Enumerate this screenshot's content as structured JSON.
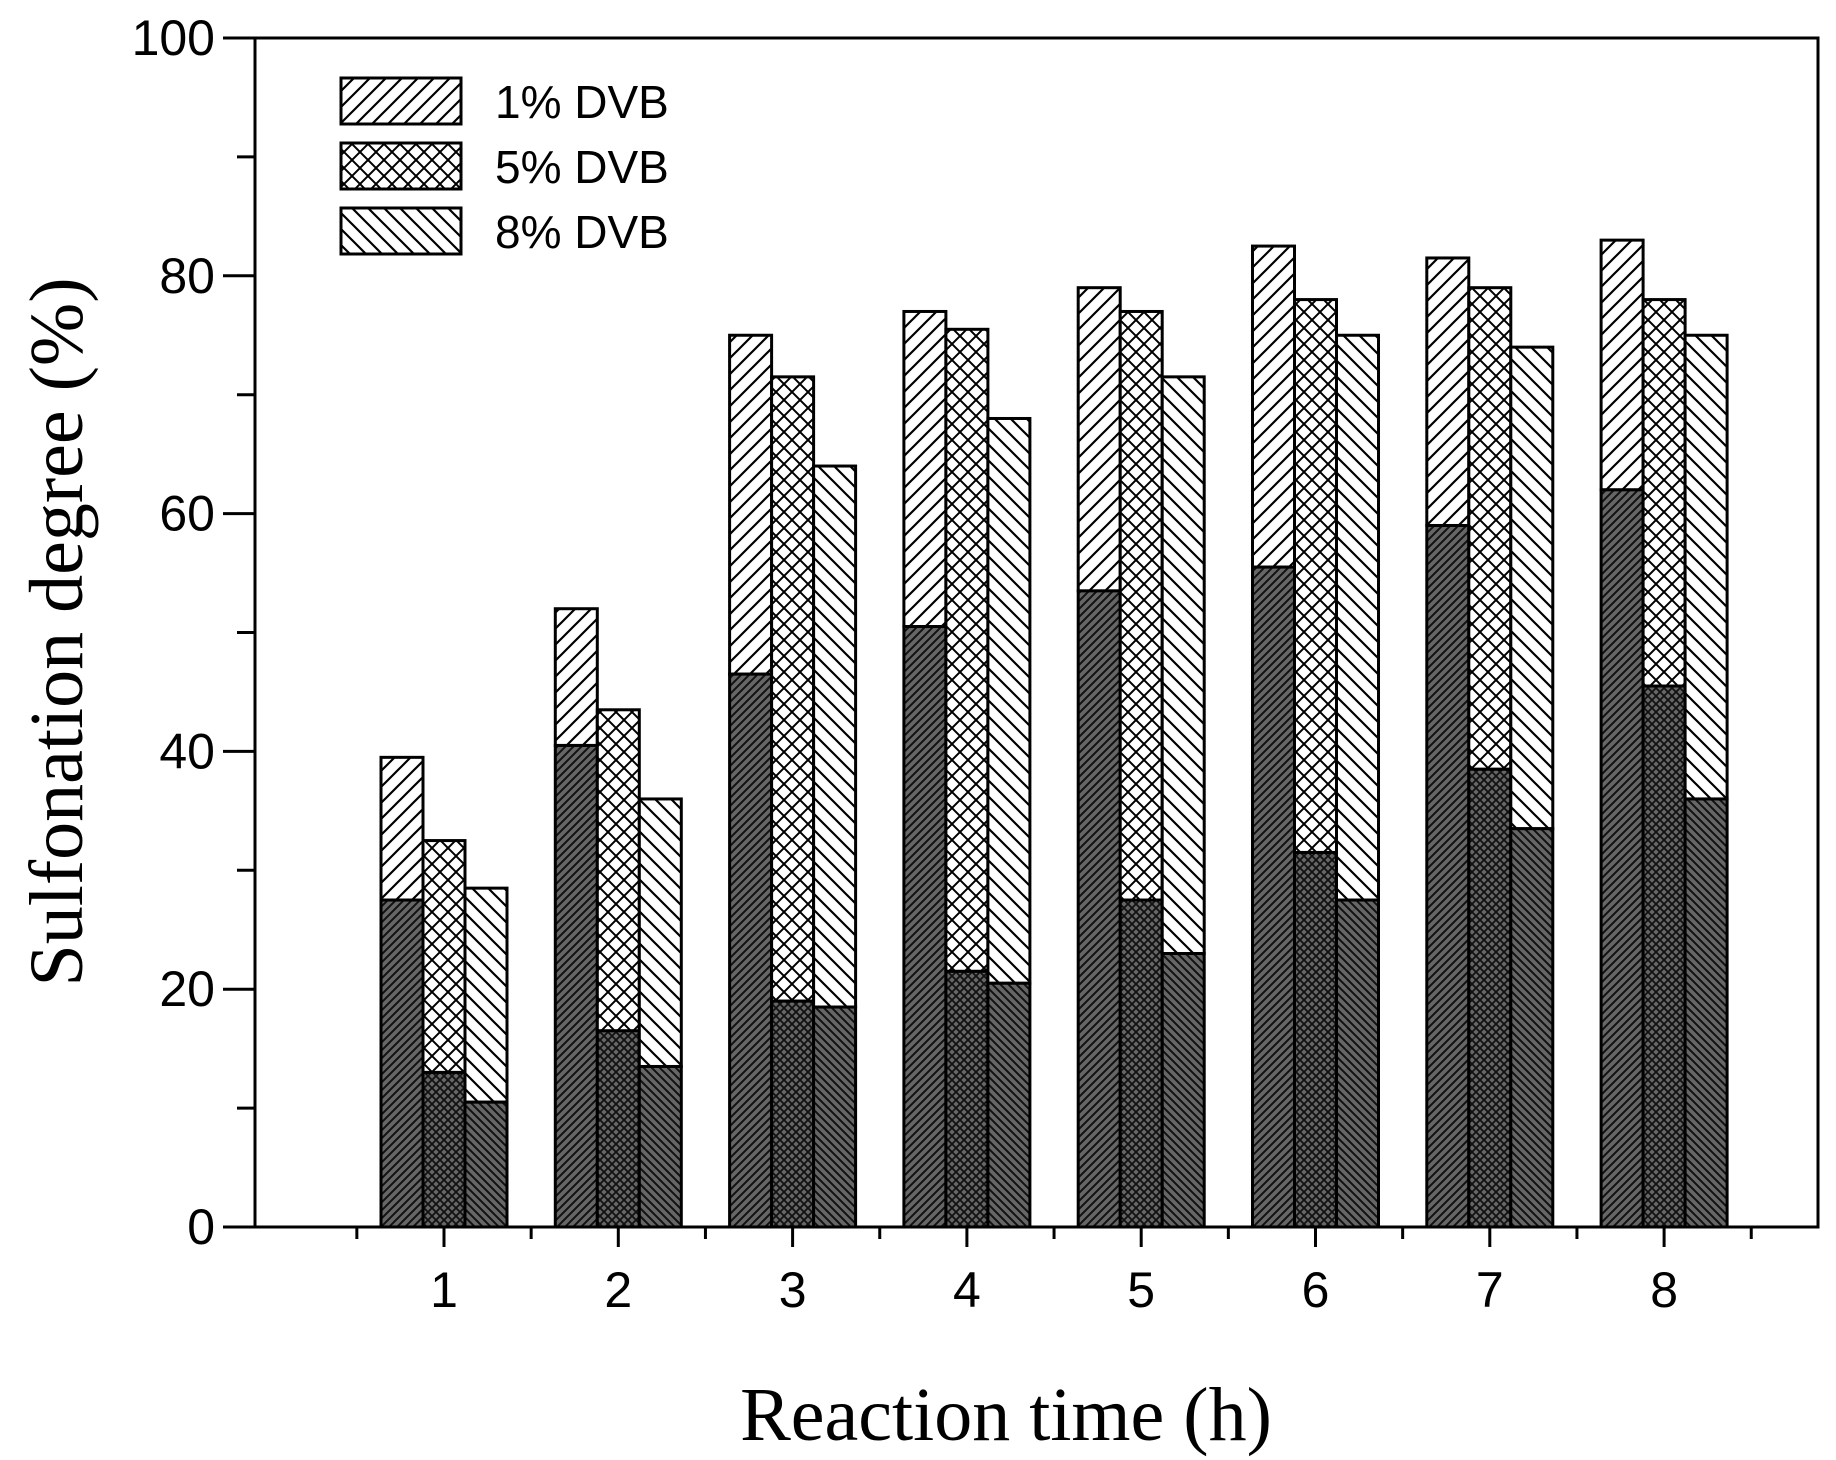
{
  "chart_data": {
    "type": "bar",
    "subtype": "grouped-stacked",
    "title": "",
    "xlabel": "Reaction time (h)",
    "ylabel": "Sulfonation degree (%)",
    "ylim": [
      0,
      100
    ],
    "yticks": [
      0,
      20,
      40,
      60,
      80,
      100
    ],
    "categories": [
      "1",
      "2",
      "3",
      "4",
      "5",
      "6",
      "7",
      "8"
    ],
    "grid": false,
    "legend_position": "top-left",
    "series": [
      {
        "name": "1% DVB",
        "pattern": "diagonal-forward",
        "totals": [
          39.5,
          52.0,
          75.0,
          77.0,
          79.0,
          82.5,
          81.5,
          83.0
        ],
        "lower": [
          27.5,
          40.5,
          46.5,
          50.5,
          53.5,
          55.5,
          59.0,
          62.0
        ]
      },
      {
        "name": "5% DVB",
        "pattern": "crosshatch",
        "totals": [
          32.5,
          43.5,
          71.5,
          75.5,
          77.0,
          78.0,
          79.0,
          78.0
        ],
        "lower": [
          13.0,
          16.5,
          19.0,
          21.5,
          27.5,
          31.5,
          38.5,
          45.5
        ]
      },
      {
        "name": "8% DVB",
        "pattern": "diagonal-back",
        "totals": [
          28.5,
          36.0,
          64.0,
          68.0,
          71.5,
          75.0,
          74.0,
          75.0
        ],
        "lower": [
          10.5,
          13.5,
          18.5,
          20.5,
          23.0,
          27.5,
          33.5,
          36.0
        ]
      }
    ]
  }
}
